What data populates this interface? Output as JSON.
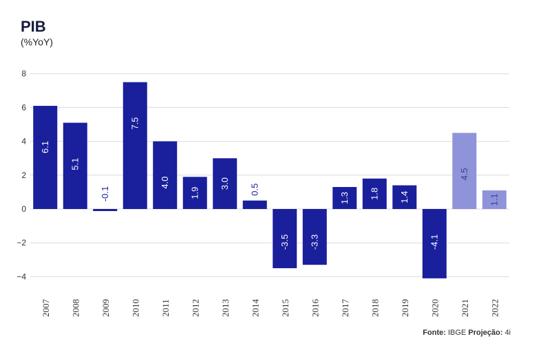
{
  "header": {
    "title": "PIB",
    "subtitle": "(%YoY)"
  },
  "footer": {
    "source_label": "Fonte:",
    "source_value": "IBGE",
    "projection_label": "Projeção:",
    "projection_value": "4i"
  },
  "colors": {
    "actual": "#1a1f9c",
    "projection": "#8f93d9",
    "label_on_bar": "#ffffff",
    "label_on_projection": "#3a3f8f",
    "grid": "#d9d9d9",
    "axis_text": "#333333"
  },
  "chart_data": {
    "type": "bar",
    "title": "PIB",
    "subtitle": "(%YoY)",
    "xlabel": "",
    "ylabel": "",
    "ylim": [
      -4.5,
      8.2
    ],
    "yticks": [
      -4,
      -2,
      0,
      2,
      4,
      6,
      8
    ],
    "ytick_labels": [
      "−4",
      "−2",
      "0",
      "2",
      "4",
      "6",
      "8"
    ],
    "grid": true,
    "categories": [
      "2007",
      "2008",
      "2009",
      "2010",
      "2011",
      "2012",
      "2013",
      "2014",
      "2015",
      "2016",
      "2017",
      "2018",
      "2019",
      "2020",
      "2021",
      "2022"
    ],
    "values": [
      6.1,
      5.1,
      -0.1,
      7.5,
      4.0,
      1.9,
      3.0,
      0.5,
      -3.5,
      -3.3,
      1.3,
      1.8,
      1.4,
      -4.1,
      4.5,
      1.1
    ],
    "labels": [
      "6.1",
      "5.1",
      "-0.1",
      "7.5",
      "4.0",
      "1.9",
      "3.0",
      "0.5",
      "-3.5",
      "-3.3",
      "1.3",
      "1.8",
      "1.4",
      "-4.1",
      "4.5",
      "1.1"
    ],
    "projection": [
      false,
      false,
      false,
      false,
      false,
      false,
      false,
      false,
      false,
      false,
      false,
      false,
      false,
      false,
      true,
      true
    ]
  }
}
